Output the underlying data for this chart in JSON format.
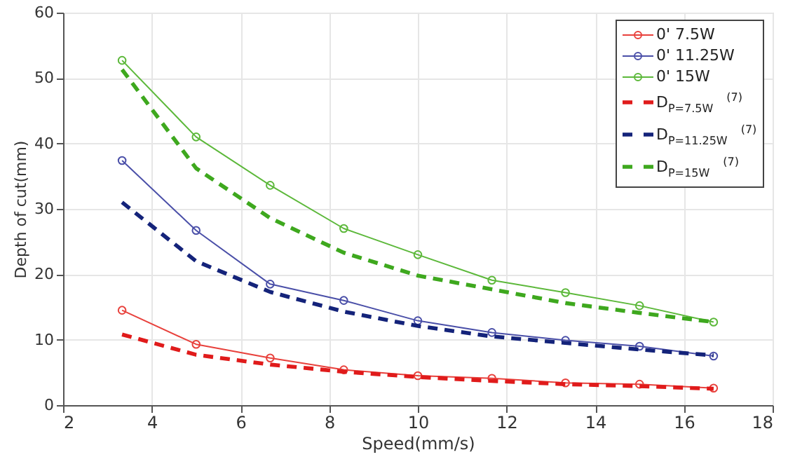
{
  "chart_data": {
    "type": "line",
    "xlabel": "Speed(mm/s)",
    "ylabel": "Depth of cut(mm)",
    "xlim": [
      2,
      18
    ],
    "xticks": [
      2,
      4,
      6,
      8,
      10,
      12,
      14,
      16,
      18
    ],
    "ylim": [
      0,
      60
    ],
    "yticks": [
      0,
      10,
      20,
      30,
      40,
      50,
      60
    ],
    "grid": true,
    "legend": "top right",
    "x": [
      3.33,
      5,
      6.67,
      8.33,
      10,
      11.67,
      13.33,
      15,
      16.67
    ],
    "series": [
      {
        "name": "0' 7.5W",
        "color": "#e8413c",
        "marker": "circle",
        "line_style": "solid",
        "values": [
          14.5,
          9.3,
          7.2,
          5.4,
          4.5,
          4.1,
          3.4,
          3.2,
          2.6
        ]
      },
      {
        "name": "0' 11.25W",
        "color": "#4a4fa8",
        "marker": "circle",
        "line_style": "solid",
        "values": [
          37.4,
          26.7,
          18.5,
          16,
          12.9,
          11.1,
          9.9,
          9,
          7.5
        ]
      },
      {
        "name": "0' 15W",
        "color": "#5cb83a",
        "marker": "circle",
        "line_style": "solid",
        "values": [
          52.7,
          41,
          33.6,
          27,
          23,
          19.1,
          17.2,
          15.2,
          12.7
        ]
      },
      {
        "name": "D$_{P=7.5W}$ $^{(7)}$",
        "color": "#e01b1b",
        "marker": "none",
        "line_style": "dashed",
        "values": [
          10.8,
          7.7,
          6.2,
          5.1,
          4.3,
          3.7,
          3.2,
          2.9,
          2.5
        ]
      },
      {
        "name": "D$_{P=11.25W}$ $^{(7)}$",
        "color": "#14237a",
        "marker": "none",
        "line_style": "dashed",
        "values": [
          31,
          22,
          17.3,
          14.3,
          12.1,
          10.5,
          9.5,
          8.5,
          7.6
        ]
      },
      {
        "name": "D$_{P=15W}$ $^{(7)}$",
        "color": "#3ea81e",
        "marker": "none",
        "line_style": "dashed",
        "values": [
          51.3,
          36.2,
          28.6,
          23.3,
          19.8,
          17.7,
          15.6,
          14.1,
          12.7
        ]
      }
    ]
  }
}
